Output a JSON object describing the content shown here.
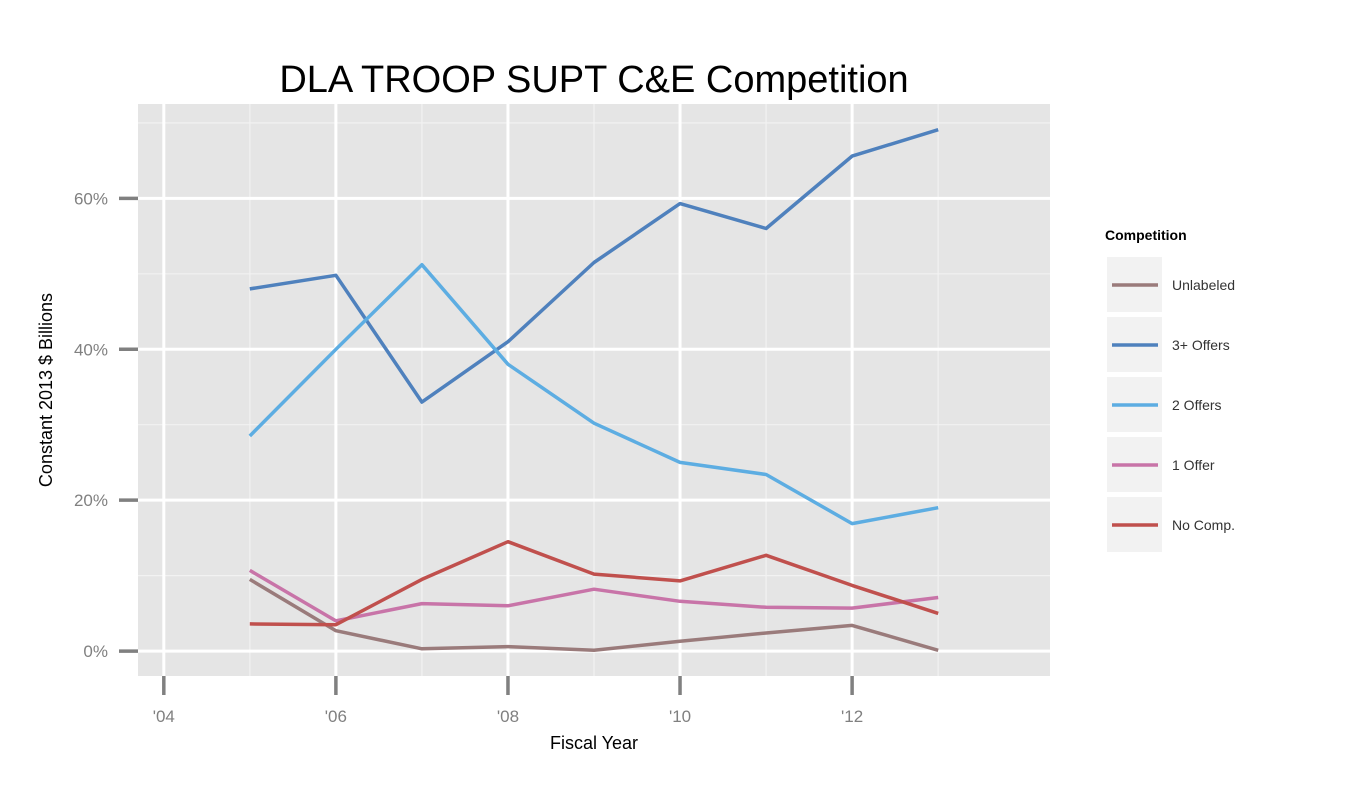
{
  "chart_data": {
    "type": "line",
    "title": "DLA TROOP SUPT C&E Competition",
    "xlabel": "Fiscal Year",
    "ylabel": "Constant 2013 $ Billions",
    "x": [
      2005,
      2006,
      2007,
      2008,
      2009,
      2010,
      2011,
      2012,
      2013
    ],
    "x_ticks": [
      2004,
      2006,
      2008,
      2010,
      2012
    ],
    "x_tick_labels": [
      "'04",
      "'06",
      "'08",
      "'10",
      "'12"
    ],
    "xlim": [
      2003.7,
      2014.3
    ],
    "y_ticks": [
      0,
      0.2,
      0.4,
      0.6
    ],
    "y_tick_labels": [
      "0%",
      "20%",
      "40%",
      "60%"
    ],
    "ylim": [
      -0.033,
      0.725
    ],
    "grid": true,
    "legend_title": "Competition",
    "legend_position": "right",
    "series": [
      {
        "name": "Unlabeled",
        "color": "#9A7B7B",
        "values": [
          0.095,
          0.027,
          0.003,
          0.006,
          0.001,
          0.013,
          0.024,
          0.034,
          0.001
        ]
      },
      {
        "name": "3+ Offers",
        "color": "#4F81BD",
        "values": [
          0.48,
          0.498,
          0.33,
          0.41,
          0.515,
          0.593,
          0.56,
          0.656,
          0.691
        ]
      },
      {
        "name": "2 Offers",
        "color": "#5DADE2",
        "values": [
          0.285,
          0.4,
          0.512,
          0.38,
          0.302,
          0.25,
          0.234,
          0.169,
          0.19
        ]
      },
      {
        "name": "1 Offer",
        "color": "#C874A8",
        "values": [
          0.107,
          0.04,
          0.063,
          0.06,
          0.082,
          0.066,
          0.058,
          0.057,
          0.071
        ]
      },
      {
        "name": "No Comp.",
        "color": "#C0504D",
        "values": [
          0.036,
          0.035,
          0.095,
          0.145,
          0.102,
          0.093,
          0.127,
          0.087,
          0.05
        ]
      }
    ]
  }
}
